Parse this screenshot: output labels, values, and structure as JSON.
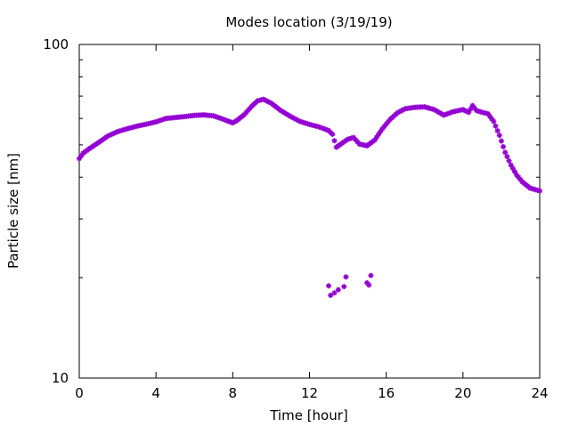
{
  "chart_data": {
    "type": "scatter",
    "title": "Modes location (3/19/19)",
    "xlabel": "Time [hour]",
    "ylabel": "Particle size [nm]",
    "xlim": [
      0,
      24
    ],
    "ylim": [
      10,
      100
    ],
    "yscale": "log",
    "grid": false,
    "legend": "none",
    "x_ticks": [
      0,
      4,
      8,
      12,
      16,
      20,
      24
    ],
    "x_tick_labels": [
      "0",
      "4",
      "8",
      "12",
      "16",
      "20",
      "24"
    ],
    "y_ticks": [
      10,
      100
    ],
    "y_tick_labels": [
      "10",
      "100"
    ],
    "marker_color": "#9400d3",
    "series": [
      {
        "values": [
          [
            0.0,
            45.5
          ],
          [
            0.2,
            47.2
          ],
          [
            0.5,
            48.6
          ],
          [
            1.0,
            50.8
          ],
          [
            1.5,
            53.2
          ],
          [
            2.0,
            54.8
          ],
          [
            2.5,
            55.9
          ],
          [
            3.0,
            56.9
          ],
          [
            3.5,
            57.7
          ],
          [
            4.0,
            58.6
          ],
          [
            4.5,
            60.0
          ],
          [
            5.0,
            60.4
          ],
          [
            5.5,
            60.8
          ],
          [
            6.0,
            61.3
          ],
          [
            6.5,
            61.5
          ],
          [
            7.0,
            61.1
          ],
          [
            7.5,
            59.7
          ],
          [
            8.0,
            58.2
          ],
          [
            8.2,
            59.1
          ],
          [
            8.6,
            61.6
          ],
          [
            9.0,
            65.4
          ],
          [
            9.3,
            67.8
          ],
          [
            9.6,
            68.5
          ],
          [
            10.0,
            66.7
          ],
          [
            10.5,
            63.4
          ],
          [
            11.0,
            60.9
          ],
          [
            11.5,
            58.8
          ],
          [
            12.0,
            57.6
          ],
          [
            12.5,
            56.6
          ],
          [
            13.0,
            55.2
          ],
          [
            13.2,
            53.8
          ],
          [
            13.4,
            49.2
          ],
          [
            13.7,
            50.6
          ],
          [
            14.0,
            52.0
          ],
          [
            14.3,
            52.6
          ],
          [
            14.6,
            50.3
          ],
          [
            15.0,
            49.7
          ],
          [
            15.4,
            51.7
          ],
          [
            15.8,
            55.9
          ],
          [
            16.2,
            59.6
          ],
          [
            16.6,
            62.5
          ],
          [
            17.0,
            64.2
          ],
          [
            17.5,
            64.8
          ],
          [
            18.0,
            65.0
          ],
          [
            18.5,
            63.8
          ],
          [
            19.0,
            61.4
          ],
          [
            19.5,
            62.9
          ],
          [
            20.0,
            63.8
          ],
          [
            20.3,
            62.6
          ],
          [
            20.5,
            65.6
          ],
          [
            20.7,
            63.4
          ],
          [
            21.0,
            62.6
          ],
          [
            21.3,
            62.0
          ],
          [
            21.6,
            58.8
          ],
          [
            21.9,
            53.4
          ],
          [
            22.2,
            47.5
          ],
          [
            22.5,
            43.5
          ],
          [
            22.8,
            40.6
          ],
          [
            23.1,
            38.7
          ],
          [
            23.5,
            37.1
          ],
          [
            24.0,
            36.4
          ],
          [
            13.0,
            18.9
          ],
          [
            13.1,
            17.7
          ],
          [
            13.3,
            18.0
          ],
          [
            13.5,
            18.4
          ],
          [
            13.8,
            18.8
          ],
          [
            13.9,
            20.1
          ],
          [
            15.0,
            19.3
          ],
          [
            15.1,
            19.0
          ],
          [
            15.2,
            20.3
          ]
        ]
      }
    ]
  }
}
